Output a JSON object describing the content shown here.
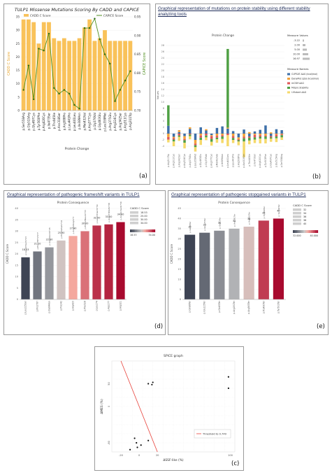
{
  "panels": {
    "a": {
      "label": "(a)"
    },
    "b": {
      "label": "(b)",
      "title": "Graphical representation of mutations on protein stability using different stability analyzing tools"
    },
    "d": {
      "label": "(d)",
      "title": "Graphical representation of pathogenic frameshift variants in TULP1"
    },
    "e": {
      "label": "(e)",
      "title": "Graphical representation of pathogenic stopgained variants in TULP1"
    },
    "c": {
      "label": "(c)"
    }
  },
  "chart_data": [
    {
      "id": "a",
      "type": "bar",
      "title": "TULP1 Missense Mutations Scoring By CADD and CAPICE",
      "xlabel": "Protein Change",
      "ylabel": "CADD C Score",
      "y2label": "CAPICE Score",
      "ylim": [
        0,
        35
      ],
      "y2lim": [
        0.7,
        0.95
      ],
      "yticks": [
        0,
        5,
        10,
        15,
        20,
        25,
        30,
        35
      ],
      "y2ticks": [
        "0.70",
        "0.75",
        "0.80",
        "0.85",
        "0.90",
        "0.95"
      ],
      "legend": {
        "bar": "CADD C Score",
        "line": "CAPICE Score"
      },
      "colors": {
        "bar": "#f9c25a",
        "line": "#4f8f1f"
      },
      "categories": [
        "p.Ser558Arg",
        "p.Gly515Arg",
        "p.Gly497Cys",
        "p.Tyr503Phe",
        "p.Arg420Cys",
        "p.Ile473Ser",
        "p.Thr445Ile",
        "p.Asn318Ser",
        "p.Arg508Pro",
        "p.Leu441Pro",
        "p.Leu441Leu",
        "p.Ile389Asn",
        "p.Met432Val",
        "p.Arg377Cys",
        "p.Gly376Val",
        "p.Gly463Glu",
        "p.Leu359Met",
        "p.Arg375Glu",
        "p.Arg324Cys",
        "p.Arg342Ser",
        "p.Arg311Cys",
        "p.Arg311Trp"
      ],
      "series": [
        {
          "name": "CADD C Score",
          "values": [
            34,
            34,
            33,
            25,
            33,
            33,
            27,
            26,
            27,
            26,
            26,
            27,
            31,
            34,
            26,
            27,
            30,
            26,
            26,
            26,
            26,
            26
          ]
        },
        {
          "name": "CAPICE Score",
          "values": [
            0.755,
            0.82,
            0.73,
            0.865,
            0.86,
            0.905,
            0.76,
            0.745,
            0.755,
            0.745,
            0.715,
            0.705,
            0.92,
            0.92,
            0.945,
            0.89,
            0.85,
            0.825,
            0.725,
            0.755,
            0.78,
            0.805
          ]
        }
      ]
    },
    {
      "id": "b",
      "type": "bar",
      "title": "Protein Change",
      "ylabel": "Values",
      "ylim": [
        -6,
        30
      ],
      "yticks": [
        -4,
        -2,
        0,
        2,
        4,
        6,
        8,
        10,
        12,
        14,
        16,
        18,
        20,
        22,
        24,
        26,
        28
      ],
      "legend_size_title": "Measure Values",
      "size_values": [
        "-3.22",
        "2.00",
        "5.00",
        "10.00",
        "16.97"
      ],
      "legend_names_title": "Measure Names",
      "legend": [
        {
          "name": "CUPSAT ΔΔG (kcal/mol)",
          "color": "#3d6fa8"
        },
        {
          "name": "DynaMut ΔΔG (kcal/mol)",
          "color": "#f2a33a"
        },
        {
          "name": "mCSM ΔΔG",
          "color": "#e05757"
        },
        {
          "name": "MUpro Stability",
          "color": "#4fa044"
        },
        {
          "name": "I-Mutant ΔΔG",
          "color": "#f5d96a"
        }
      ],
      "categories": [
        "p.Arg311Trp",
        "p.Arg311Cys",
        "p.Arg342Ser",
        "p.Arg324Cys",
        "p.Arg375Glu",
        "p.Leu359Met",
        "p.Gly463Glu",
        "p.Gly376Val",
        "p.Arg377Cys",
        "p.Met432Val",
        "p.Ile389Asn",
        "p.Leu441Leu",
        "p.Leu441Pro",
        "p.Arg508Pro",
        "p.Asn318Ser",
        "p.Thr445Ile",
        "p.Ile473Ser",
        "p.Arg420Cys",
        "p.Tyr503Phe",
        "p.Gly497Cys",
        "p.Gly515Arg",
        "p.Ser558Arg"
      ],
      "series": [
        {
          "name": "CUPSAT ΔΔG (kcal/mol)",
          "values": [
            2.5,
            -1.0,
            0.5,
            -0.8,
            1.5,
            -2.0,
            2.0,
            1.0,
            -0.5,
            1.8,
            2.3,
            1.6,
            0.8,
            -1.2,
            1.3,
            -0.9,
            0.7,
            1.2,
            2.6,
            -0.8,
            1.4,
            1.1
          ]
        },
        {
          "name": "DynaMut ΔΔG (kcal/mol)",
          "values": [
            -1.1,
            -0.4,
            0.6,
            -0.9,
            0.5,
            -1.2,
            -0.6,
            0.4,
            -0.3,
            -0.7,
            -0.5,
            0.3,
            -0.8,
            -0.6,
            -1.0,
            0.5,
            -0.4,
            -0.5,
            -0.6,
            0.4,
            -0.3,
            -0.2
          ]
        },
        {
          "name": "mCSM ΔΔG",
          "values": [
            -0.8,
            -0.5,
            -0.6,
            -0.4,
            -0.3,
            -0.5,
            -0.7,
            -0.6,
            -0.9,
            -0.6,
            -0.4,
            -0.5,
            -0.6,
            -0.3,
            -0.5,
            -0.4,
            -0.8,
            -0.5,
            -0.3,
            -0.4,
            -0.6,
            -0.3
          ]
        },
        {
          "name": "MUpro Stability",
          "values": [
            6.5,
            -0.6,
            -0.4,
            -0.8,
            -0.5,
            -0.6,
            -0.7,
            -0.6,
            -0.9,
            -0.5,
            -0.8,
            25.0,
            -0.6,
            -0.4,
            -1.0,
            -0.9,
            -0.7,
            -0.6,
            -0.8,
            -0.4,
            -0.6,
            -0.7
          ]
        },
        {
          "name": "I-Mutant ΔΔG",
          "values": [
            -0.9,
            -1.5,
            -1.3,
            -1.8,
            -1.0,
            -1.4,
            -1.6,
            -0.9,
            -1.2,
            -1.1,
            -1.3,
            -3.5,
            -1.0,
            -1.2,
            -5.0,
            -1.2,
            -1.1,
            -1.5,
            -1.4,
            -1.0,
            -1.2,
            -0.8
          ]
        }
      ]
    },
    {
      "id": "d",
      "type": "bar",
      "title": "Protein Consequence",
      "ylabel": "CADD C Score",
      "ylim": [
        0,
        40
      ],
      "yticks": [
        0,
        5,
        10,
        15,
        20,
        25,
        30,
        35,
        40
      ],
      "legend_title": "CADD C Score",
      "legend_values": [
        "18.53",
        "25.00",
        "30.00",
        "34.00"
      ],
      "colorbar_labels": [
        "18.53",
        "34.00"
      ],
      "categories": [
        "p.Leu225Ser",
        "p.Pro278?",
        "p.Gly84Asn",
        "p.Pro242",
        "p.Arg420",
        "p.Phe528",
        "p.Leu274",
        "p.Asp277",
        "p.Arg321"
      ],
      "labels": [
        "p.Leu225Serfs*23",
        "p.Pro278Thrfs*7",
        "p.Gly84Asnfs*18",
        "p.Pro242Alafs*16",
        "p.Arg420Glyfs*7",
        "p.Phe528Leufs*33",
        "p.Leu274Serfs*39",
        "p.Asp277Metfs*38",
        "p.Arg321Valfs*39"
      ],
      "values": [
        18.53,
        21.1,
        22.9,
        25.9,
        27.9,
        30.0,
        32.5,
        33.0,
        34.0
      ],
      "value_labels": [
        "18.53",
        "21.10",
        "22.90",
        "25.90",
        "27.90",
        "30.00",
        "32.50",
        "33.00",
        "34.00"
      ]
    },
    {
      "id": "e",
      "type": "bar",
      "title": "Protein Consequence",
      "ylabel": "CADD C Score",
      "ylim": [
        0,
        45
      ],
      "yticks": [
        0,
        5,
        10,
        15,
        20,
        25,
        30,
        35,
        40,
        45
      ],
      "legend_title": "CADD C Score",
      "legend_values": [
        "32",
        "34",
        "36",
        "38",
        "40"
      ],
      "colorbar_labels": [
        "32.000",
        "40.000"
      ],
      "categories": [
        "p.Gln88Ter",
        "p.Glu125Ter",
        "p.Gln83Ter",
        "p.Arg181Ter",
        "p.Arg363Ter",
        "p.Trp490Ter",
        "p.Tyr502Ter"
      ],
      "labels": [
        "p.Gln88Ter",
        "p.Glu125Ter",
        "p.Gln83Ter",
        "p.Arg181Ter",
        "p.Arg363Ter",
        "p.Trp490Ter",
        "p.Tyr502Ter"
      ],
      "values": [
        32,
        33,
        34,
        35,
        36,
        39,
        40
      ],
      "value_labels": [
        "32",
        "33",
        "34",
        "35",
        "36",
        "39",
        "40"
      ]
    },
    {
      "id": "c",
      "type": "scatter",
      "title": "SPiCE graph",
      "xlabel": "ΔSSF-like (%)",
      "ylabel": "ΔMES (%)",
      "xlim": [
        -30,
        105
      ],
      "ylim": [
        -100,
        100
      ],
      "xticks": [
        -20,
        0,
        20,
        100
      ],
      "yticks": [
        -80,
        0,
        50
      ],
      "legend": "Threshold to 0.749",
      "threshold_line": [
        [
          -20,
          100
        ],
        [
          20,
          -100
        ]
      ],
      "points": [
        [
          10,
          50
        ],
        [
          14,
          48
        ],
        [
          15,
          53
        ],
        [
          98,
          65
        ],
        [
          98,
          40
        ],
        [
          -5,
          -70
        ],
        [
          -3,
          -80
        ],
        [
          -2,
          -90
        ],
        [
          -10,
          -95
        ],
        [
          2,
          -85
        ],
        [
          10,
          -75
        ]
      ]
    }
  ]
}
